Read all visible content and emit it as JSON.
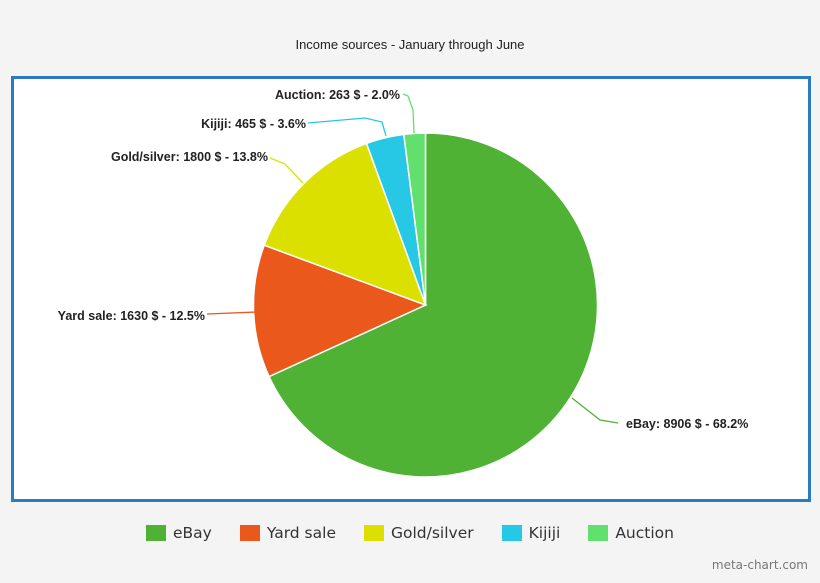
{
  "chart_data": {
    "type": "pie",
    "title": "Income sources - January through June",
    "categories": [
      "eBay",
      "Yard sale",
      "Gold/silver",
      "Kijiji",
      "Auction"
    ],
    "values": [
      8906,
      1630,
      1800,
      465,
      263
    ],
    "percentages": [
      68.2,
      12.5,
      13.8,
      3.6,
      2.0
    ],
    "unit": "$",
    "colors": [
      "#4fb234",
      "#eb581b",
      "#dce000",
      "#26c8e6",
      "#62e06e"
    ],
    "data_labels": [
      "eBay: 8906 $ - 68.2%",
      "Yard sale: 1630 $ - 12.5%",
      "Gold/silver: 1800 $ - 13.8%",
      "Kijiji: 465 $ - 3.6%",
      "Auction: 263 $ - 2.0%"
    ],
    "legend_position": "bottom",
    "start_angle_deg": 0,
    "direction": "clockwise"
  },
  "title": "Income sources - January through June",
  "legend": [
    {
      "label": "eBay",
      "color": "#4fb234"
    },
    {
      "label": "Yard sale",
      "color": "#eb581b"
    },
    {
      "label": "Gold/silver",
      "color": "#dce000"
    },
    {
      "label": "Kijiji",
      "color": "#26c8e6"
    },
    {
      "label": "Auction",
      "color": "#62e06e"
    }
  ],
  "credit": "meta-chart.com"
}
